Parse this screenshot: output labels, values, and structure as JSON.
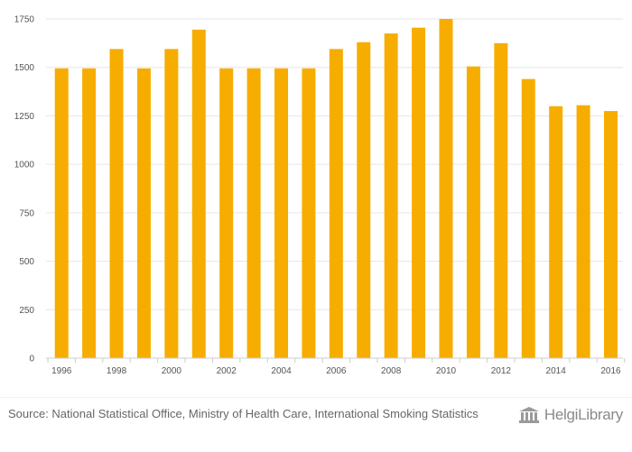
{
  "chart_data": {
    "type": "bar",
    "categories": [
      "1996",
      "1997",
      "1998",
      "1999",
      "2000",
      "2001",
      "2002",
      "2003",
      "2004",
      "2005",
      "2006",
      "2007",
      "2008",
      "2009",
      "2010",
      "2011",
      "2012",
      "2013",
      "2014",
      "2015",
      "2016"
    ],
    "values": [
      1495,
      1495,
      1595,
      1495,
      1595,
      1695,
      1495,
      1495,
      1495,
      1495,
      1595,
      1630,
      1675,
      1705,
      1750,
      1505,
      1625,
      1440,
      1300,
      1305,
      1275
    ],
    "x_tick_labels": [
      "1996",
      "1998",
      "2000",
      "2002",
      "2004",
      "2006",
      "2008",
      "2010",
      "2012",
      "2014",
      "2016"
    ],
    "y_ticks": [
      0,
      250,
      500,
      750,
      1000,
      1250,
      1500,
      1750
    ],
    "ylim": [
      0,
      1750
    ],
    "title": "",
    "xlabel": "",
    "ylabel": "",
    "grid": true,
    "legend": "none",
    "bar_color": "#F7AD00"
  },
  "footer": {
    "source": "Source: National Statistical Office, Ministry of Health Care, International Smoking Statistics",
    "brand": "HelgiLibrary"
  }
}
